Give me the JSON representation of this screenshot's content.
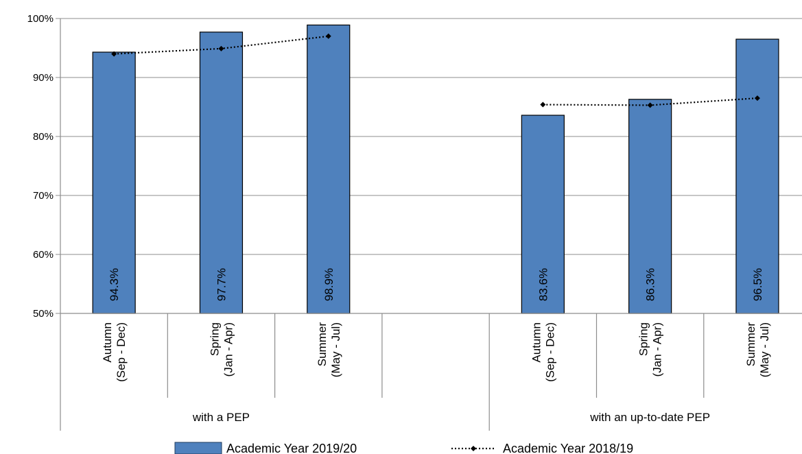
{
  "chart_data": {
    "type": "bar",
    "title": "",
    "xlabel": "",
    "ylabel": "",
    "ylim": [
      50,
      100
    ],
    "y_ticks": [
      "50%",
      "60%",
      "70%",
      "80%",
      "90%",
      "100%"
    ],
    "grid": true,
    "legend_position": "bottom",
    "groups": [
      {
        "label": "with a PEP",
        "categories": [
          {
            "line1": "Autumn",
            "line2": "(Sep - Dec)"
          },
          {
            "line1": "Spring",
            "line2": "(Jan - Apr)"
          },
          {
            "line1": "Summer",
            "line2": "(May - Jul)"
          }
        ]
      },
      {
        "label": "with an up-to-date PEP",
        "categories": [
          {
            "line1": "Autumn",
            "line2": "(Sep - Dec)"
          },
          {
            "line1": "Spring",
            "line2": "(Jan - Apr)"
          },
          {
            "line1": "Summer",
            "line2": "(May - Jul)"
          }
        ]
      }
    ],
    "series": [
      {
        "name": "Academic Year 2019/20",
        "kind": "bar",
        "color": "#4f81bd",
        "values": [
          [
            94.3,
            97.7,
            98.9
          ],
          [
            83.6,
            86.3,
            96.5
          ]
        ],
        "labels": [
          [
            "94.3%",
            "97.7%",
            "98.9%"
          ],
          [
            "83.6%",
            "86.3%",
            "96.5%"
          ]
        ]
      },
      {
        "name": "Academic Year 2018/19",
        "kind": "dotted-line",
        "color": "#000000",
        "values": [
          [
            94.0,
            94.9,
            97.0
          ],
          [
            85.4,
            85.3,
            86.5
          ]
        ]
      }
    ]
  }
}
